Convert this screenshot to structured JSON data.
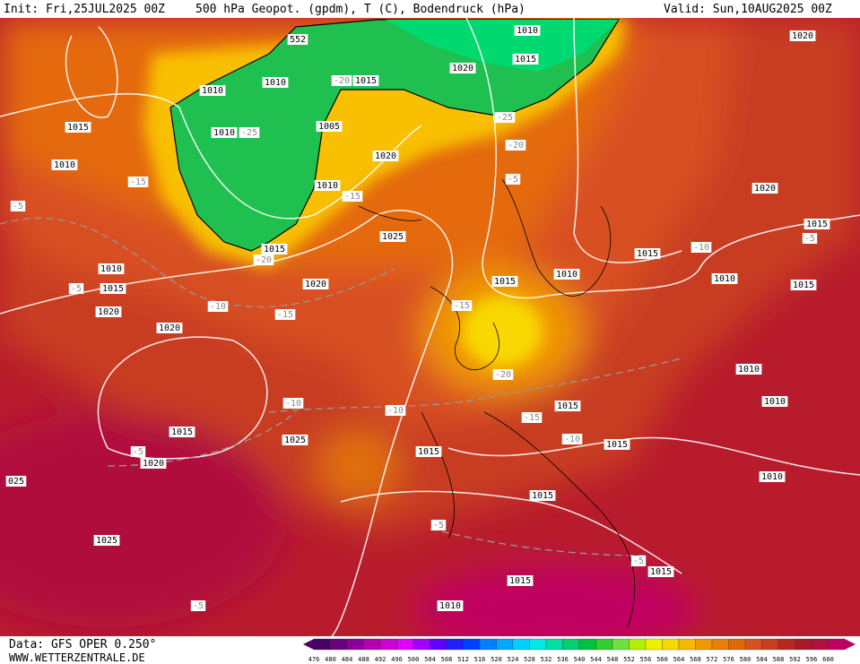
{
  "header": {
    "init": "Init: Fri,25JUL2025 00Z",
    "title": "500 hPa Geopot. (gpdm), T (C), Bodendruck (hPa)",
    "valid": "Valid: Sun,10AUG2025 00Z"
  },
  "footer": {
    "data": "Data: GFS OPER 0.250°",
    "site": "WWW.WETTERZENTRALE.DE"
  },
  "colorbar": {
    "values": [
      476,
      480,
      484,
      488,
      492,
      496,
      500,
      504,
      508,
      512,
      516,
      520,
      524,
      528,
      532,
      536,
      540,
      544,
      548,
      552,
      556,
      560,
      564,
      568,
      572,
      576,
      580,
      584,
      588,
      592,
      596,
      600
    ],
    "colors": [
      "#4b0066",
      "#6a0080",
      "#8b0099",
      "#b000b0",
      "#d000d0",
      "#e000ff",
      "#a000ff",
      "#6000ff",
      "#2020ff",
      "#0040ff",
      "#0080ff",
      "#00a8ff",
      "#00d0ff",
      "#00e8e8",
      "#00e0a0",
      "#00d070",
      "#00c040",
      "#30d030",
      "#70e040",
      "#b0f000",
      "#f0f000",
      "#f8d800",
      "#f8b800",
      "#f09800",
      "#e88000",
      "#e06800",
      "#d85020",
      "#c83c20",
      "#b82820",
      "#a81828",
      "#b0103c",
      "#c00060"
    ]
  },
  "map_labels": [
    "1010",
    "1015",
    "1020",
    "552",
    "1010",
    "1010",
    "1015",
    "1020",
    "-20",
    "1015",
    "1010",
    "-25",
    "1005",
    "-25",
    "1020",
    "-20",
    "1010",
    "-15",
    "1010",
    "-15",
    "-5",
    "1020",
    "-5",
    "1025",
    "1015",
    "-5",
    "-10",
    "1015",
    "-20",
    "1015",
    "1010",
    "1010",
    "1015",
    "1010",
    "1015",
    "-5",
    "1015",
    "1020",
    "-10",
    "-15",
    "-15",
    "1020",
    "1020",
    "-20",
    "1010",
    "-10",
    "-10",
    "1015",
    "1010",
    "-15",
    "1015",
    "-10",
    "1025",
    "1015",
    "1015",
    "-5",
    "1020",
    "1010",
    "025",
    "1015",
    "-5",
    "1025",
    "-5",
    "1015",
    "1015",
    "-5",
    "1010"
  ]
}
